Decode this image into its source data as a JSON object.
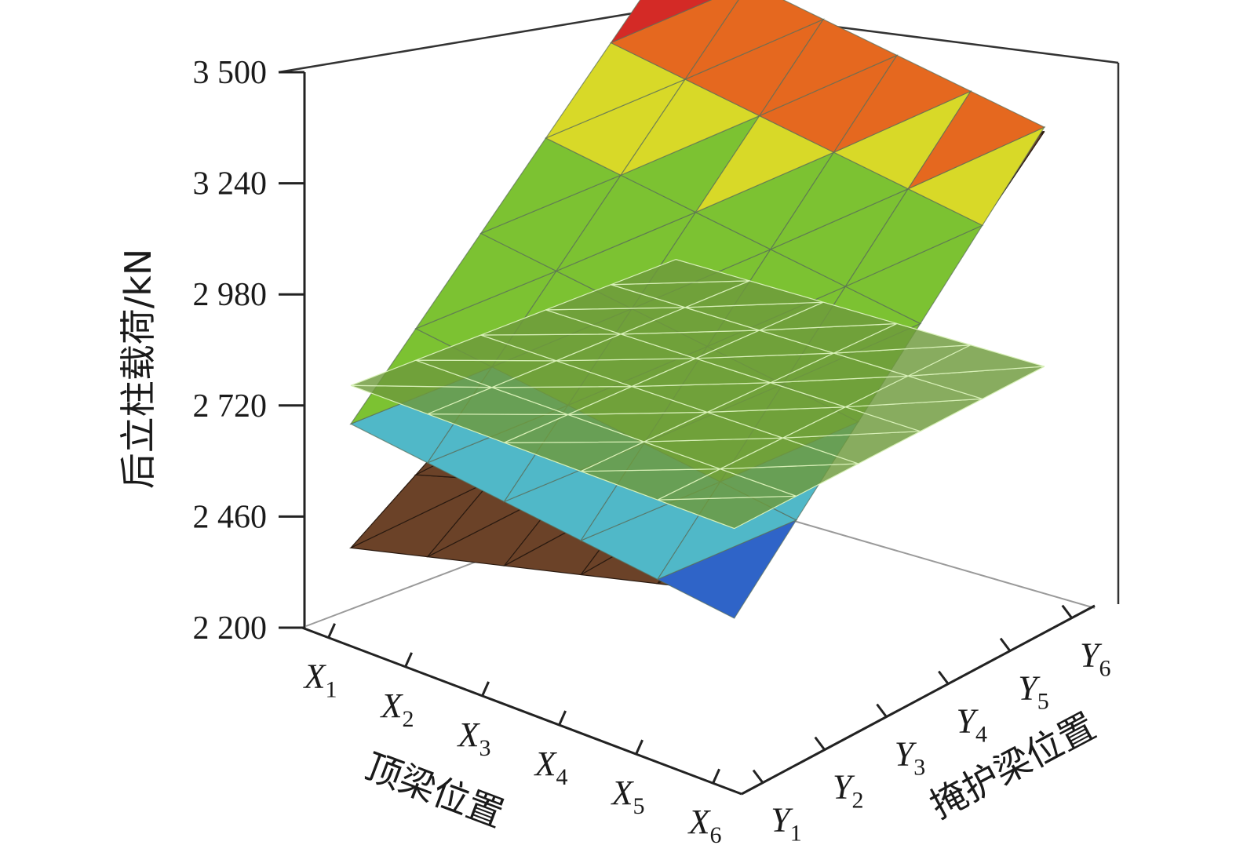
{
  "chart_data": {
    "type": "surface3d",
    "zlabel": "后立柱载荷/kN",
    "xlabel": "顶梁位置",
    "ylabel": "掩护梁位置",
    "zlim": [
      2200,
      3500
    ],
    "z_ticks": [
      "3 500",
      "3 240",
      "2 980",
      "2 720",
      "2 460",
      "2 200"
    ],
    "x_ticks": [
      {
        "base": "X",
        "sub": "1"
      },
      {
        "base": "X",
        "sub": "2"
      },
      {
        "base": "X",
        "sub": "3"
      },
      {
        "base": "X",
        "sub": "4"
      },
      {
        "base": "X",
        "sub": "5"
      },
      {
        "base": "X",
        "sub": "6"
      }
    ],
    "y_ticks": [
      {
        "base": "Y",
        "sub": "1"
      },
      {
        "base": "Y",
        "sub": "2"
      },
      {
        "base": "Y",
        "sub": "3"
      },
      {
        "base": "Y",
        "sub": "4"
      },
      {
        "base": "Y",
        "sub": "5"
      },
      {
        "base": "Y",
        "sub": "6"
      }
    ],
    "series": [
      {
        "kind": "colored-surface",
        "corners": {
          "x1y1": 2680,
          "x1y6": 3500,
          "x6y1": 2560,
          "x6y6": 3330
        }
      },
      {
        "kind": "brown-surface",
        "corners": {
          "x1y1": 2390,
          "x1y6": 2950,
          "x6y1": 2620,
          "x6y6": 3320
        }
      },
      {
        "kind": "green-plane",
        "value": 2770
      }
    ],
    "colors": {
      "red": "#d42a26",
      "orange": "#e5681f",
      "yellow": "#d8d928",
      "green": "#7cc232",
      "cyan": "#50b8c8",
      "blue": "#2f64c8",
      "brown": "#6b4228",
      "plane": "#6e9a3c"
    }
  }
}
